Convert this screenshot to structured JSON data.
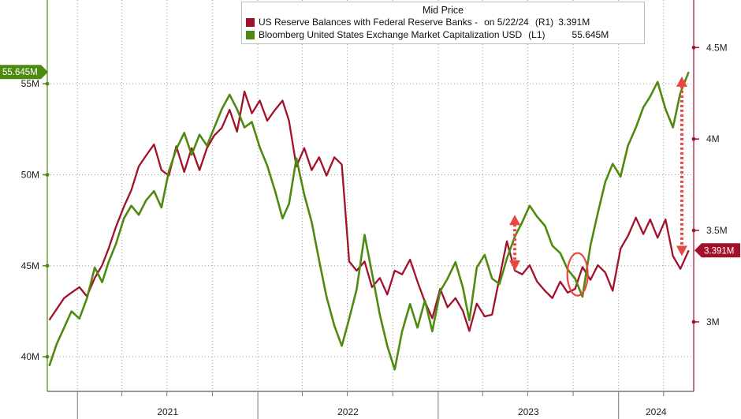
{
  "chart_data": {
    "type": "line",
    "title": "Mid Price",
    "x_range": [
      "2020-11",
      "2024-06"
    ],
    "x_tick_labels": [
      "2021",
      "2022",
      "2023",
      "2024"
    ],
    "left_axis": {
      "ticks": [
        40,
        45,
        50,
        55
      ],
      "tick_labels": [
        "40M",
        "45M",
        "50M",
        "55M"
      ],
      "ylim": [
        38.1,
        59.6
      ]
    },
    "right_axis": {
      "ticks": [
        3.0,
        3.5,
        4.0,
        4.5
      ],
      "tick_labels": [
        "3M",
        "3.5M",
        "4M",
        "4.5M"
      ],
      "ylim": [
        2.62,
        4.76
      ]
    },
    "grid": true,
    "legend_position": "top",
    "series": [
      {
        "name": "US Reserve Balances with Federal Reserve Banks -",
        "date_label": "on 5/22/24",
        "axis_label": "(R1)",
        "value_label": "3.391M",
        "axis": "right",
        "color": "#a3102a",
        "points": [
          [
            "2020-11-05",
            3.01
          ],
          [
            "2020-11-20",
            3.07
          ],
          [
            "2020-12-05",
            3.13
          ],
          [
            "2020-12-20",
            3.16
          ],
          [
            "2021-01-05",
            3.19
          ],
          [
            "2021-01-20",
            3.14
          ],
          [
            "2021-02-05",
            3.24
          ],
          [
            "2021-02-20",
            3.31
          ],
          [
            "2021-03-05",
            3.4
          ],
          [
            "2021-03-20",
            3.52
          ],
          [
            "2021-04-05",
            3.63
          ],
          [
            "2021-04-20",
            3.72
          ],
          [
            "2021-05-05",
            3.85
          ],
          [
            "2021-05-20",
            3.91
          ],
          [
            "2021-06-05",
            3.97
          ],
          [
            "2021-06-20",
            3.83
          ],
          [
            "2021-07-05",
            3.8
          ],
          [
            "2021-07-20",
            3.96
          ],
          [
            "2021-08-05",
            3.82
          ],
          [
            "2021-08-20",
            3.95
          ],
          [
            "2021-09-05",
            3.83
          ],
          [
            "2021-09-20",
            3.95
          ],
          [
            "2021-10-05",
            4.02
          ],
          [
            "2021-10-20",
            4.06
          ],
          [
            "2021-11-05",
            4.16
          ],
          [
            "2021-11-20",
            4.04
          ],
          [
            "2021-12-05",
            4.26
          ],
          [
            "2021-12-20",
            4.14
          ],
          [
            "2022-01-05",
            4.21
          ],
          [
            "2022-01-20",
            4.1
          ],
          [
            "2022-02-05",
            4.16
          ],
          [
            "2022-02-20",
            4.21
          ],
          [
            "2022-03-05",
            4.1
          ],
          [
            "2022-03-20",
            3.85
          ],
          [
            "2022-04-05",
            3.95
          ],
          [
            "2022-04-20",
            3.83
          ],
          [
            "2022-05-05",
            3.9
          ],
          [
            "2022-05-20",
            3.8
          ],
          [
            "2022-06-05",
            3.9
          ],
          [
            "2022-06-20",
            3.86
          ],
          [
            "2022-07-05",
            3.33
          ],
          [
            "2022-07-20",
            3.28
          ],
          [
            "2022-08-05",
            3.33
          ],
          [
            "2022-08-20",
            3.19
          ],
          [
            "2022-09-05",
            3.24
          ],
          [
            "2022-09-20",
            3.15
          ],
          [
            "2022-10-05",
            3.28
          ],
          [
            "2022-10-20",
            3.26
          ],
          [
            "2022-11-05",
            3.34
          ],
          [
            "2022-11-20",
            3.22
          ],
          [
            "2022-12-05",
            3.11
          ],
          [
            "2022-12-20",
            3.02
          ],
          [
            "2023-01-05",
            3.18
          ],
          [
            "2023-01-20",
            3.08
          ],
          [
            "2023-02-05",
            3.13
          ],
          [
            "2023-02-20",
            3.06
          ],
          [
            "2023-03-05",
            2.95
          ],
          [
            "2023-03-20",
            3.1
          ],
          [
            "2023-04-05",
            3.03
          ],
          [
            "2023-04-20",
            3.04
          ],
          [
            "2023-05-05",
            3.24
          ],
          [
            "2023-05-20",
            3.44
          ],
          [
            "2023-06-05",
            3.28
          ],
          [
            "2023-06-20",
            3.26
          ],
          [
            "2023-07-05",
            3.31
          ],
          [
            "2023-07-20",
            3.22
          ],
          [
            "2023-08-05",
            3.17
          ],
          [
            "2023-08-20",
            3.13
          ],
          [
            "2023-09-05",
            3.22
          ],
          [
            "2023-09-20",
            3.16
          ],
          [
            "2023-10-05",
            3.18
          ],
          [
            "2023-10-20",
            3.3
          ],
          [
            "2023-11-05",
            3.23
          ],
          [
            "2023-11-20",
            3.31
          ],
          [
            "2023-12-05",
            3.27
          ],
          [
            "2023-12-20",
            3.17
          ],
          [
            "2024-01-05",
            3.4
          ],
          [
            "2024-01-20",
            3.47
          ],
          [
            "2024-02-05",
            3.57
          ],
          [
            "2024-02-20",
            3.48
          ],
          [
            "2024-03-05",
            3.56
          ],
          [
            "2024-03-20",
            3.46
          ],
          [
            "2024-04-05",
            3.56
          ],
          [
            "2024-04-20",
            3.36
          ],
          [
            "2024-05-05",
            3.29
          ],
          [
            "2024-05-22",
            3.391
          ]
        ]
      },
      {
        "name": "Bloomberg United States Exchange Market Capitalization USD",
        "axis_label": "(L1)",
        "value_label": "55.645M",
        "axis": "left",
        "color": "#4f8a10",
        "points": [
          [
            "2020-11-05",
            39.5
          ],
          [
            "2020-11-20",
            40.7
          ],
          [
            "2020-12-05",
            41.6
          ],
          [
            "2020-12-20",
            42.5
          ],
          [
            "2021-01-05",
            42.1
          ],
          [
            "2021-01-20",
            43.2
          ],
          [
            "2021-02-05",
            44.9
          ],
          [
            "2021-02-20",
            44.1
          ],
          [
            "2021-03-05",
            45.2
          ],
          [
            "2021-03-20",
            46.2
          ],
          [
            "2021-04-05",
            47.6
          ],
          [
            "2021-04-20",
            48.3
          ],
          [
            "2021-05-05",
            47.8
          ],
          [
            "2021-05-20",
            48.6
          ],
          [
            "2021-06-05",
            49.1
          ],
          [
            "2021-06-20",
            48.2
          ],
          [
            "2021-07-05",
            50.2
          ],
          [
            "2021-07-20",
            51.4
          ],
          [
            "2021-08-05",
            52.3
          ],
          [
            "2021-08-20",
            51.1
          ],
          [
            "2021-09-05",
            52.2
          ],
          [
            "2021-09-20",
            51.6
          ],
          [
            "2021-10-05",
            52.6
          ],
          [
            "2021-10-20",
            53.6
          ],
          [
            "2021-11-05",
            54.4
          ],
          [
            "2021-11-20",
            53.6
          ],
          [
            "2021-12-05",
            52.6
          ],
          [
            "2021-12-20",
            52.9
          ],
          [
            "2022-01-05",
            51.5
          ],
          [
            "2022-01-20",
            50.5
          ],
          [
            "2022-02-05",
            49.1
          ],
          [
            "2022-02-20",
            47.6
          ],
          [
            "2022-03-05",
            48.4
          ],
          [
            "2022-03-20",
            50.9
          ],
          [
            "2022-04-05",
            48.9
          ],
          [
            "2022-04-20",
            47.4
          ],
          [
            "2022-05-05",
            45.3
          ],
          [
            "2022-05-20",
            43.3
          ],
          [
            "2022-06-05",
            41.7
          ],
          [
            "2022-06-20",
            40.6
          ],
          [
            "2022-07-05",
            42.1
          ],
          [
            "2022-07-20",
            43.7
          ],
          [
            "2022-08-05",
            46.7
          ],
          [
            "2022-08-20",
            44.6
          ],
          [
            "2022-09-05",
            42.3
          ],
          [
            "2022-09-20",
            40.6
          ],
          [
            "2022-10-05",
            39.3
          ],
          [
            "2022-10-20",
            41.4
          ],
          [
            "2022-11-05",
            42.9
          ],
          [
            "2022-11-20",
            41.6
          ],
          [
            "2022-12-05",
            43.1
          ],
          [
            "2022-12-20",
            41.4
          ],
          [
            "2023-01-05",
            43.6
          ],
          [
            "2023-01-20",
            44.3
          ],
          [
            "2023-02-05",
            45.2
          ],
          [
            "2023-02-20",
            43.8
          ],
          [
            "2023-03-05",
            42.0
          ],
          [
            "2023-03-20",
            44.9
          ],
          [
            "2023-04-05",
            45.6
          ],
          [
            "2023-04-20",
            44.3
          ],
          [
            "2023-05-05",
            44.0
          ],
          [
            "2023-05-20",
            45.4
          ],
          [
            "2023-06-05",
            46.6
          ],
          [
            "2023-06-20",
            47.4
          ],
          [
            "2023-07-05",
            48.3
          ],
          [
            "2023-07-20",
            47.7
          ],
          [
            "2023-08-05",
            47.2
          ],
          [
            "2023-08-20",
            46.1
          ],
          [
            "2023-09-05",
            45.7
          ],
          [
            "2023-09-20",
            44.8
          ],
          [
            "2023-10-05",
            44.3
          ],
          [
            "2023-10-20",
            43.3
          ],
          [
            "2023-11-05",
            46.1
          ],
          [
            "2023-11-20",
            47.9
          ],
          [
            "2023-12-05",
            49.6
          ],
          [
            "2023-12-20",
            50.6
          ],
          [
            "2024-01-05",
            49.9
          ],
          [
            "2024-01-20",
            51.6
          ],
          [
            "2024-02-05",
            52.6
          ],
          [
            "2024-02-20",
            53.7
          ],
          [
            "2024-03-05",
            54.3
          ],
          [
            "2024-03-20",
            55.1
          ],
          [
            "2024-04-05",
            53.6
          ],
          [
            "2024-04-20",
            52.6
          ],
          [
            "2024-05-05",
            54.5
          ],
          [
            "2024-05-22",
            55.645
          ]
        ]
      }
    ],
    "annotations": [
      {
        "type": "double-arrow",
        "date": "2023-06-05",
        "from_right": 3.28,
        "to_left": 47.8,
        "color": "#e8473d"
      },
      {
        "type": "double-arrow",
        "date": "2024-05-08",
        "from_right": 3.36,
        "to_left": 55.4,
        "color": "#e8473d"
      },
      {
        "type": "circle",
        "date": "2023-10-10",
        "right_value": 3.26,
        "color": "#e8473d"
      }
    ]
  }
}
